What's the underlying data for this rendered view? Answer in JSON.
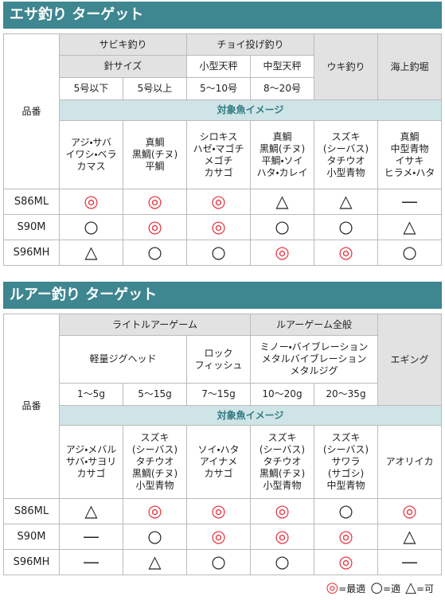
{
  "sections": [
    {
      "title": "エサ釣り ターゲット",
      "part_header": "品番",
      "target_header": "対象魚イメージ",
      "header_rows": [
        [
          "サビキ釣り",
          "チョイ投げ釣り",
          "ウキ釣り",
          "海上釣堀"
        ],
        [
          "針サイズ",
          "小型天秤",
          "中型天秤"
        ],
        [
          "5号以下",
          "5号以上",
          "5〜10号",
          "8〜20号"
        ]
      ],
      "fish": [
        "アジ・サバ\nイワシ・ベラ\nカマス",
        "真鯛\n黒鯛(チヌ)\n平鯛",
        "シロキス\nハゼ・マゴチ\nメゴチ\nカサゴ",
        "真鯛\n黒鯛(チヌ)\n平鯛・ソイ\nハタ・カレイ",
        "スズキ\n(シーバス)\nタチウオ\n小型青物",
        "真鯛\n中型青物\nイサキ\nヒラメ・ハタ"
      ],
      "rows": [
        {
          "model": "S86ML",
          "marks": [
            "◎",
            "◎",
            "◎",
            "△",
            "△",
            "—"
          ]
        },
        {
          "model": "S90M",
          "marks": [
            "○",
            "◎",
            "◎",
            "○",
            "○",
            "△"
          ]
        },
        {
          "model": "S96MH",
          "marks": [
            "△",
            "○",
            "○",
            "◎",
            "◎",
            "○"
          ]
        }
      ]
    },
    {
      "title": "ルアー釣り ターゲット",
      "part_header": "品番",
      "target_header": "対象魚イメージ",
      "header_rows": [
        [
          "ライトルアーゲーム",
          "ルアーゲーム全般",
          "エギング"
        ],
        [
          "軽量ジグヘッド",
          "ロック\nフィッシュ",
          "ミノー・バイブレーション\nメタルバイブレーション\nメタルジグ"
        ],
        [
          "1〜5g",
          "5〜15g",
          "7〜15g",
          "10〜20g",
          "20〜35g"
        ]
      ],
      "fish": [
        "アジ・メバル\nサバ・サヨリ\nカサゴ",
        "スズキ\n(シーバス)\nタチウオ\n黒鯛(チヌ)\n小型青物",
        "ソイ・ハタ\nアイナメ\nカサゴ",
        "スズキ\n(シーバス)\nタチウオ\n黒鯛(チヌ)\n小型青物",
        "スズキ\n(シーバス)\nサワラ\n(サゴシ)\n中型青物",
        "アオリイカ"
      ],
      "rows": [
        {
          "model": "S86ML",
          "marks": [
            "△",
            "◎",
            "◎",
            "◎",
            "○",
            "◎"
          ]
        },
        {
          "model": "S90M",
          "marks": [
            "—",
            "○",
            "◎",
            "◎",
            "◎",
            "△"
          ]
        },
        {
          "model": "S96MH",
          "marks": [
            "—",
            "△",
            "○",
            "○",
            "◎",
            "—"
          ]
        }
      ]
    }
  ],
  "legend": [
    {
      "symbol": "◎",
      "label": "=最適"
    },
    {
      "symbol": "○",
      "label": "=適"
    },
    {
      "symbol": "△",
      "label": "=可"
    }
  ]
}
